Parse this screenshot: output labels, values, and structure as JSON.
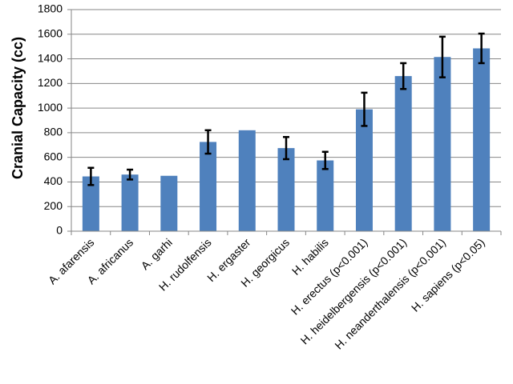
{
  "chart_data": {
    "type": "bar",
    "title": "",
    "xlabel": "",
    "ylabel": "Cranial Capacity (cc)",
    "ylim": [
      0,
      1800
    ],
    "yticks": [
      0,
      200,
      400,
      600,
      800,
      1000,
      1200,
      1400,
      1600,
      1800
    ],
    "grid": true,
    "legend": "none",
    "bar_color": "#4f81bd",
    "categories": [
      "A. afarensis",
      "A. africanus",
      "A. garhi",
      "H. rudolfensis",
      "H. ergaster",
      "H. georgicus",
      "H. habilis",
      "H. erectus (p<0.001)",
      "H. heidelbergensis (p<0.001)",
      "H. neanderthalensis (p<0.001)",
      "H. sapiens (p<0.05)"
    ],
    "values": [
      445,
      460,
      450,
      725,
      820,
      675,
      575,
      990,
      1260,
      1415,
      1485
    ],
    "error": [
      70,
      40,
      null,
      95,
      null,
      90,
      70,
      135,
      105,
      165,
      120
    ]
  }
}
